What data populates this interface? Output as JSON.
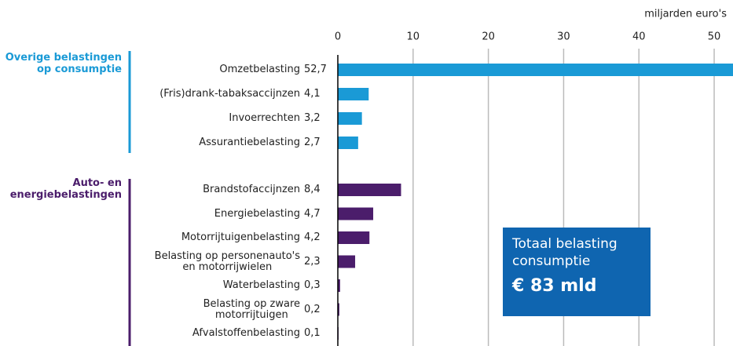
{
  "chart_data": {
    "type": "bar",
    "orientation": "horizontal",
    "x_axis_label": "miljarden euro's",
    "xlim": [
      0,
      52.5
    ],
    "xticks": [
      0,
      10,
      20,
      30,
      40,
      50
    ],
    "grid": true,
    "series": [
      {
        "name": "Overige belastingen\nop consumptie",
        "color": "#1a9ad6",
        "categories": [
          "Omzetbelasting",
          "(Fris)drank-tabaksaccijnzen",
          "Invoerrechten",
          "Assurantiebelasting"
        ],
        "values": [
          52.7,
          4.1,
          3.2,
          2.7
        ],
        "value_labels": [
          "52,7",
          "4,1",
          "3,2",
          "2,7"
        ]
      },
      {
        "name": "Auto- en\nenergiebelastingen",
        "color": "#4b1d6b",
        "categories": [
          "Brandstofaccijnzen",
          "Energiebelasting",
          "Motorrijtuigenbelasting",
          "Belasting op personenauto's\nen motorrijwielen",
          "Waterbelasting",
          "Belasting op zware\nmotorrijtuigen",
          "Afvalstoffenbelasting"
        ],
        "values": [
          8.4,
          4.7,
          4.2,
          2.3,
          0.3,
          0.2,
          0.1
        ],
        "value_labels": [
          "8,4",
          "4,7",
          "4,2",
          "2,3",
          "0,3",
          "0,2",
          "0,1"
        ]
      }
    ],
    "annotation": {
      "title": "Totaal belasting\nconsumptie",
      "value": "€ 83 mld",
      "color": "#0f65b0"
    }
  }
}
